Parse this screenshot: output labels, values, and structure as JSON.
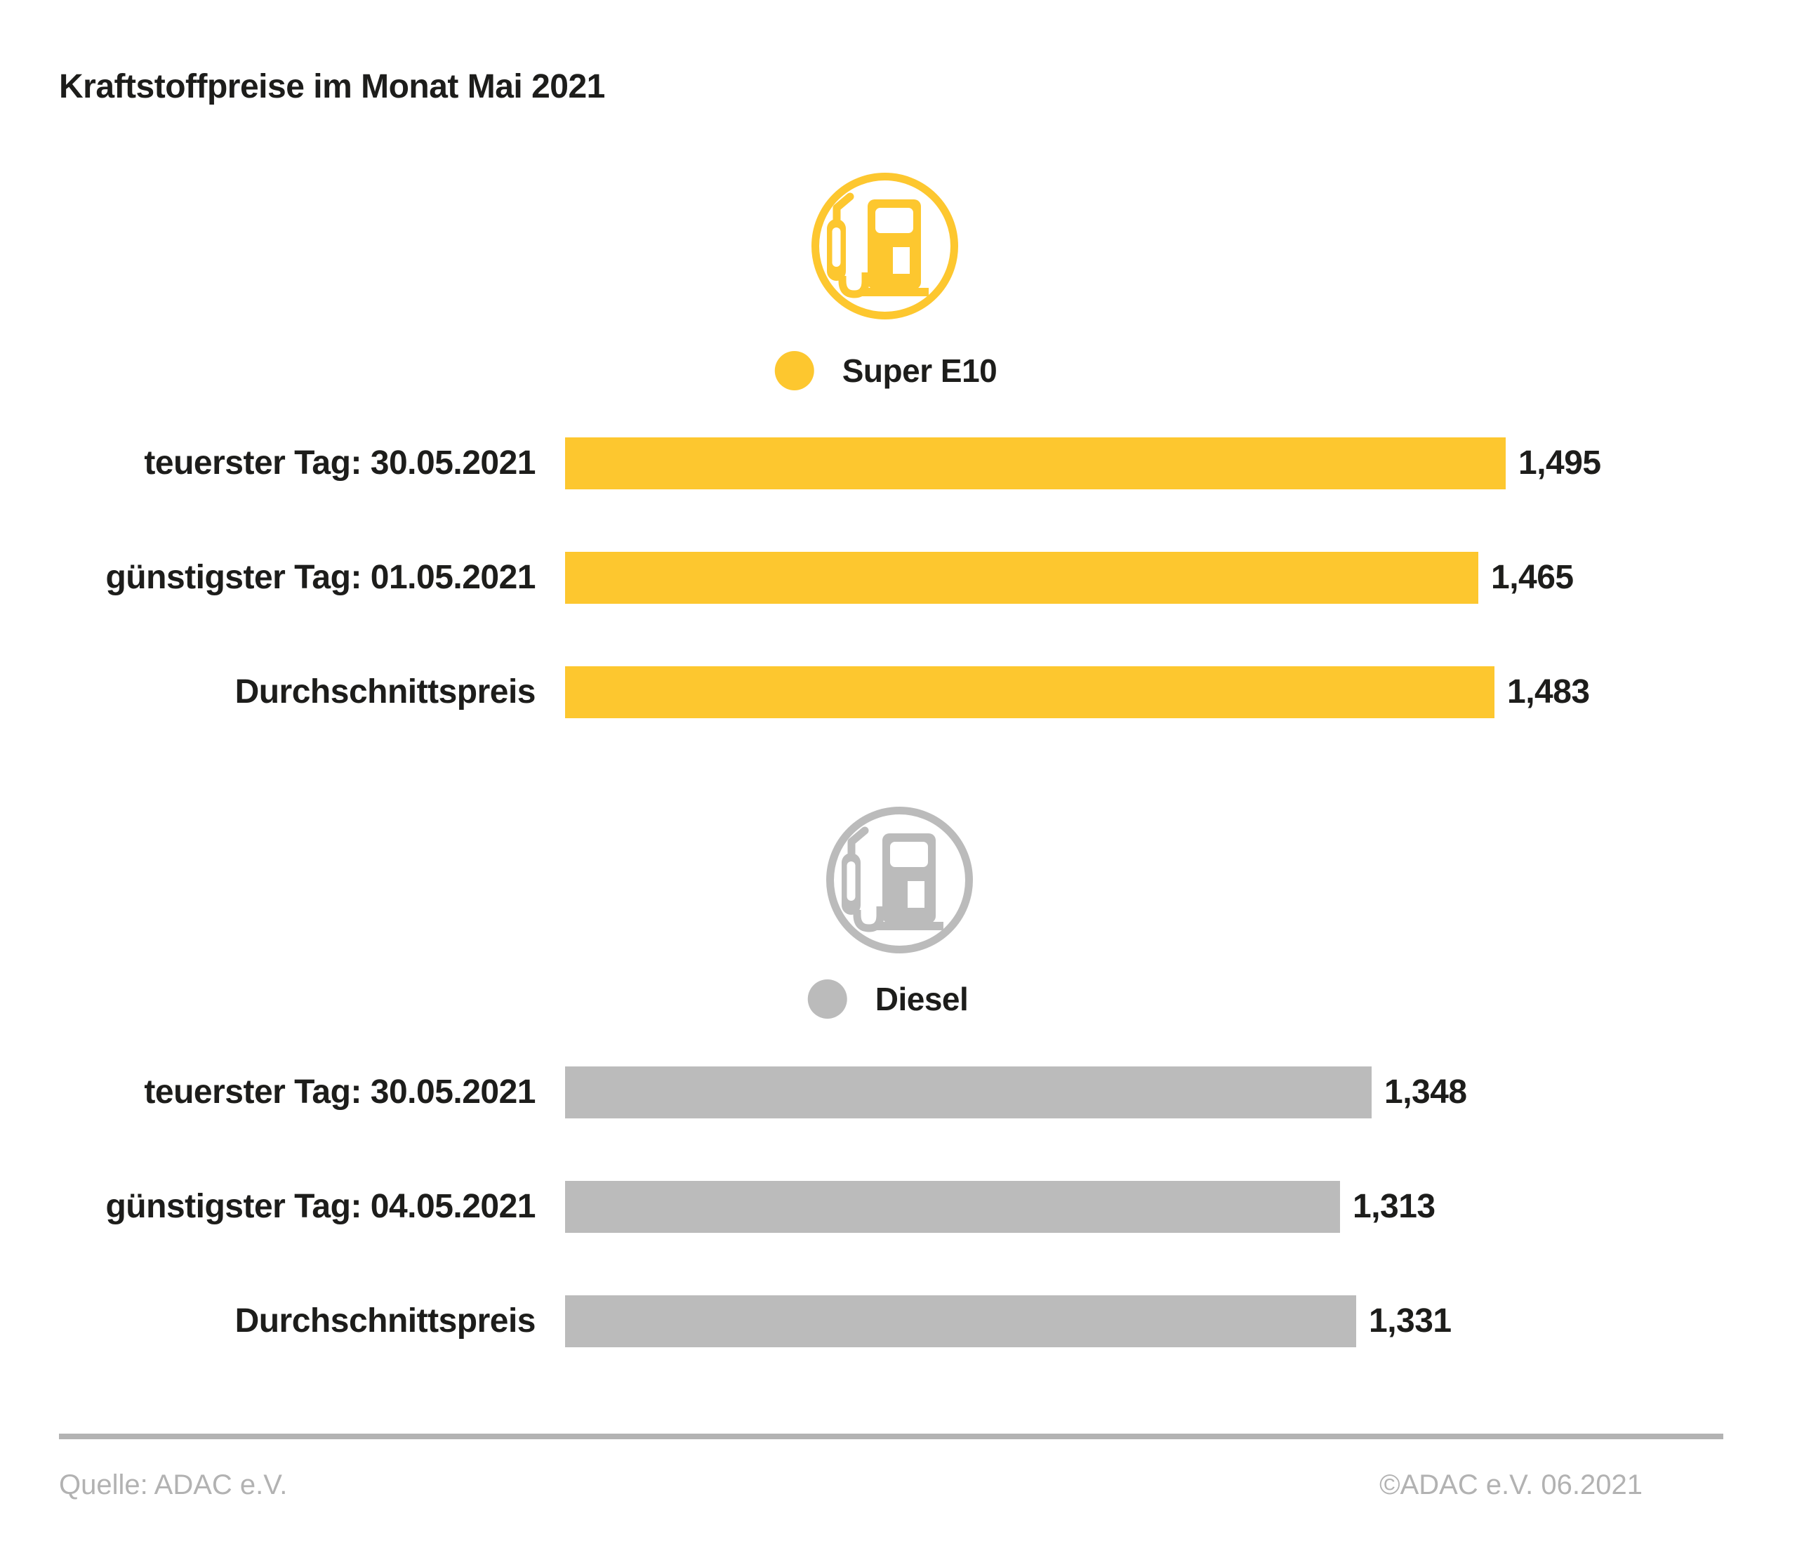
{
  "title": "Kraftstoffpreise im Monat Mai 2021",
  "colors": {
    "super_e10": "#FDC72F",
    "diesel": "#BBBBBB",
    "text": "#1D1D1B",
    "footer_gray": "#B2B2B2"
  },
  "chart_data": {
    "type": "bar",
    "orientation": "horizontal",
    "title": "Kraftstoffpreise im Monat Mai 2021",
    "grid": false,
    "legend_position": "centered above each bar group",
    "groups": [
      {
        "name": "Super E10",
        "color": "#FDC72F",
        "icon": "fuel-pump-icon",
        "categories": [
          "teuerster Tag: 30.05.2021",
          "günstigster Tag: 01.05.2021",
          "Durchschnittspreis"
        ],
        "values": [
          1.495,
          1.465,
          1.483
        ],
        "value_labels": [
          "1,495",
          "1,465",
          "1,483"
        ]
      },
      {
        "name": "Diesel",
        "color": "#BBBBBB",
        "icon": "fuel-pump-icon",
        "categories": [
          "teuerster Tag: 30.05.2021",
          "günstigster Tag: 04.05.2021",
          "Durchschnittspreis"
        ],
        "values": [
          1.348,
          1.313,
          1.331
        ],
        "value_labels": [
          "1,348",
          "1,313",
          "1,331"
        ]
      }
    ]
  },
  "footer": {
    "source": "Quelle: ADAC e.V.",
    "copyright": "©ADAC e.V. 06.2021"
  }
}
